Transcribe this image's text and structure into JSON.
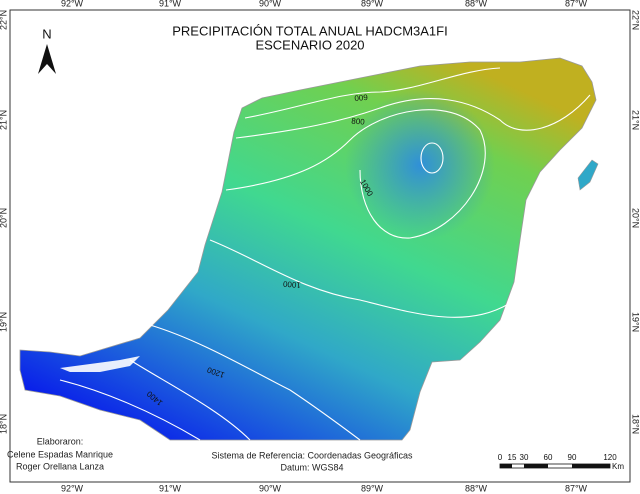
{
  "title": [
    "PRECIPITACIÓN TOTAL  ANUAL HADCM3A1FI",
    "ESCENARIO 2020"
  ],
  "north": "N",
  "longitudes": [
    "92°W",
    "91°W",
    "90°W",
    "89°W",
    "88°W",
    "87°W"
  ],
  "latitudes": [
    "22°N",
    "21°N",
    "20°N",
    "19°N",
    "18°N"
  ],
  "contour_labels": [
    "600",
    "800",
    "1000",
    "1000",
    "1200",
    "1400"
  ],
  "credits": {
    "heading": "Elaboraron:",
    "authors": [
      "Celene Espadas Manrique",
      "Roger Orellana Lanza"
    ]
  },
  "reference": [
    "Sistema de Referencia: Coordenadas Geográficas",
    "Datum: WGS84"
  ],
  "scale_bar": {
    "ticks": [
      "0",
      "15",
      "30",
      "60",
      "90",
      "120"
    ],
    "unit": "Km"
  }
}
